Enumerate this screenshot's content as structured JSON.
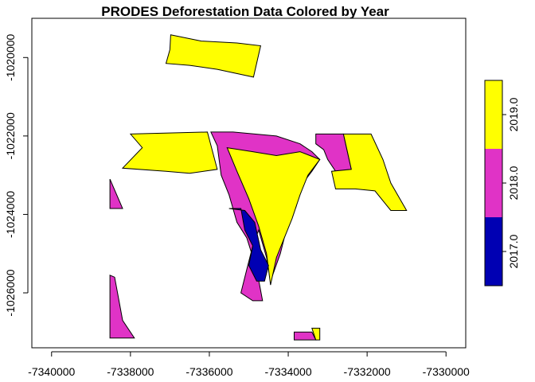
{
  "chart_data": {
    "type": "map",
    "title": "PRODES Deforestation Data Colored by Year",
    "xlim": [
      -7340500,
      -7329500
    ],
    "ylim": [
      -1027400,
      -1019000
    ],
    "x_ticks": [
      -7340000,
      -7338000,
      -7336000,
      -7334000,
      -7332000,
      -7330000
    ],
    "x_tick_labels": [
      "-7340000",
      "-7338000",
      "-7336000",
      "-7334000",
      "-7332000",
      "-7330000"
    ],
    "y_ticks": [
      -1020000,
      -1022000,
      -1024000,
      -1026000
    ],
    "y_tick_labels": [
      "-1020000",
      "-1022000",
      "-1024000",
      "-1026000"
    ],
    "legend": {
      "placement": "right",
      "breaks": [
        2016.5,
        2017.5,
        2018.5,
        2019.5
      ],
      "labels": [
        "2017.0",
        "2018.0",
        "2019.0"
      ],
      "colors": [
        "#0000b3",
        "#e033c6",
        "#ffff00"
      ]
    },
    "polygons": [
      {
        "year": 2019,
        "coords": [
          [
            -7336980,
            -1019420
          ],
          [
            -7336200,
            -1019580
          ],
          [
            -7335300,
            -1019630
          ],
          [
            -7334700,
            -1019700
          ],
          [
            -7334880,
            -1020500
          ],
          [
            -7335800,
            -1020300
          ],
          [
            -7336500,
            -1020200
          ],
          [
            -7337100,
            -1020150
          ],
          [
            -7337000,
            -1019800
          ]
        ]
      },
      {
        "year": 2019,
        "coords": [
          [
            -7338000,
            -1021950
          ],
          [
            -7336050,
            -1021900
          ],
          [
            -7335800,
            -1022850
          ],
          [
            -7336500,
            -1022950
          ],
          [
            -7337100,
            -1022900
          ],
          [
            -7338200,
            -1022820
          ],
          [
            -7337700,
            -1022300
          ]
        ]
      },
      {
        "year": 2018,
        "coords": [
          [
            -7338520,
            -1023100
          ],
          [
            -7338200,
            -1023850
          ],
          [
            -7338520,
            -1023850
          ]
        ]
      },
      {
        "year": 2018,
        "coords": [
          [
            -7338520,
            -1025550
          ],
          [
            -7338400,
            -1025600
          ],
          [
            -7338200,
            -1026700
          ],
          [
            -7337900,
            -1027150
          ],
          [
            -7338520,
            -1027150
          ]
        ]
      },
      {
        "year": 2018,
        "coords": [
          [
            -7335960,
            -1021900
          ],
          [
            -7335800,
            -1022250
          ],
          [
            -7335700,
            -1023000
          ],
          [
            -7335500,
            -1023500
          ],
          [
            -7335300,
            -1024200
          ],
          [
            -7335050,
            -1024600
          ],
          [
            -7334800,
            -1025400
          ],
          [
            -7334650,
            -1026200
          ],
          [
            -7334900,
            -1026200
          ],
          [
            -7335200,
            -1026000
          ],
          [
            -7335050,
            -1025400
          ],
          [
            -7334900,
            -1024800
          ],
          [
            -7334750,
            -1024400
          ],
          [
            -7334550,
            -1025100
          ],
          [
            -7334450,
            -1025700
          ],
          [
            -7334200,
            -1025000
          ],
          [
            -7334000,
            -1024200
          ],
          [
            -7333800,
            -1023800
          ],
          [
            -7333700,
            -1023300
          ],
          [
            -7333400,
            -1022900
          ],
          [
            -7333200,
            -1022600
          ],
          [
            -7333400,
            -1022400
          ],
          [
            -7333700,
            -1022200
          ],
          [
            -7334300,
            -1022000
          ],
          [
            -7335400,
            -1021900
          ]
        ]
      },
      {
        "year": 2018,
        "coords": [
          [
            -7333300,
            -1021950
          ],
          [
            -7332600,
            -1021950
          ],
          [
            -7332400,
            -1022850
          ],
          [
            -7332800,
            -1022900
          ],
          [
            -7333000,
            -1022600
          ],
          [
            -7333100,
            -1022350
          ],
          [
            -7333300,
            -1022200
          ]
        ]
      },
      {
        "year": 2019,
        "coords": [
          [
            -7335550,
            -1022300
          ],
          [
            -7334900,
            -1022400
          ],
          [
            -7334300,
            -1022500
          ],
          [
            -7333700,
            -1022400
          ],
          [
            -7333200,
            -1022600
          ],
          [
            -7333500,
            -1023000
          ],
          [
            -7333700,
            -1023500
          ],
          [
            -7333900,
            -1024100
          ],
          [
            -7334300,
            -1025100
          ],
          [
            -7334450,
            -1025800
          ],
          [
            -7334550,
            -1025000
          ],
          [
            -7334750,
            -1024300
          ],
          [
            -7335000,
            -1023600
          ],
          [
            -7335300,
            -1022900
          ]
        ]
      },
      {
        "year": 2019,
        "coords": [
          [
            -7332600,
            -1021950
          ],
          [
            -7331900,
            -1021950
          ],
          [
            -7331600,
            -1022600
          ],
          [
            -7331400,
            -1023200
          ],
          [
            -7331000,
            -1023900
          ],
          [
            -7331400,
            -1023900
          ],
          [
            -7331800,
            -1023400
          ],
          [
            -7332300,
            -1023350
          ],
          [
            -7332800,
            -1023350
          ],
          [
            -7332900,
            -1022900
          ],
          [
            -7332400,
            -1022850
          ]
        ]
      },
      {
        "year": 2017,
        "coords": [
          [
            -7335500,
            -1023850
          ],
          [
            -7335200,
            -1023850
          ],
          [
            -7335100,
            -1024400
          ],
          [
            -7334900,
            -1024800
          ],
          [
            -7335000,
            -1025300
          ],
          [
            -7334800,
            -1025700
          ],
          [
            -7334600,
            -1025700
          ],
          [
            -7334500,
            -1025300
          ],
          [
            -7334700,
            -1024900
          ],
          [
            -7334850,
            -1024200
          ],
          [
            -7335100,
            -1023900
          ]
        ]
      },
      {
        "year": 2018,
        "coords": [
          [
            -7333850,
            -1027000
          ],
          [
            -7333400,
            -1027000
          ],
          [
            -7333300,
            -1027200
          ],
          [
            -7333850,
            -1027200
          ]
        ]
      },
      {
        "year": 2019,
        "coords": [
          [
            -7333400,
            -1026900
          ],
          [
            -7333200,
            -1026900
          ],
          [
            -7333200,
            -1027200
          ],
          [
            -7333300,
            -1027200
          ]
        ]
      }
    ]
  }
}
